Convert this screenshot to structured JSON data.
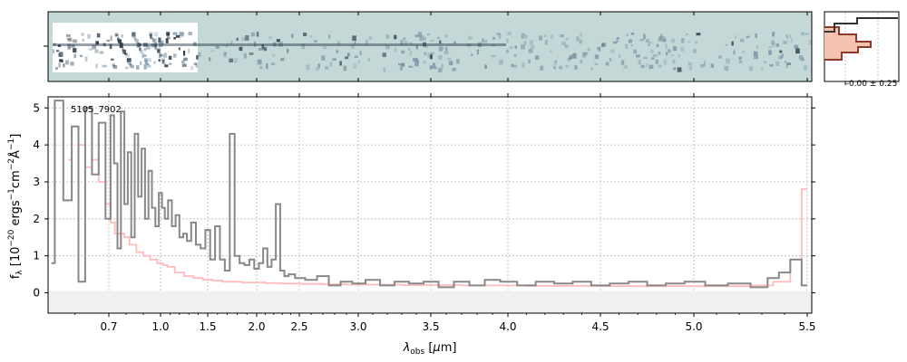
{
  "chart_data": {
    "type": "line",
    "object_id": "5105_7902",
    "xlabel": "λ_obs [μm]",
    "ylabel": "f_λ [10^-20 ergs^-1cm^-2Å^-1]",
    "x_scale": "nonlinear (approximately reciprocal)",
    "xlim": [
      0.52,
      5.52
    ],
    "ylim": [
      -0.55,
      5.3
    ],
    "x_ticks": [
      {
        "value": 0.7,
        "label": "0.7"
      },
      {
        "value": 1.0,
        "label": "1.0"
      },
      {
        "value": 1.5,
        "label": "1.5"
      },
      {
        "value": 2.0,
        "label": "2.0"
      },
      {
        "value": 2.5,
        "label": "2.5"
      },
      {
        "value": 3.0,
        "label": "3.0"
      },
      {
        "value": 3.5,
        "label": "3.5"
      },
      {
        "value": 4.0,
        "label": "4.0"
      },
      {
        "value": 4.5,
        "label": "4.5"
      },
      {
        "value": 5.0,
        "label": "5.0"
      },
      {
        "value": 5.5,
        "label": "5.5"
      }
    ],
    "y_ticks": [
      0,
      1,
      2,
      3,
      4,
      5
    ],
    "grid": true,
    "series": [
      {
        "role": "data",
        "color": "#888888",
        "x": [
          0.53,
          0.55,
          0.58,
          0.6,
          0.62,
          0.64,
          0.66,
          0.68,
          0.7,
          0.72,
          0.74,
          0.76,
          0.78,
          0.8,
          0.82,
          0.84,
          0.86,
          0.88,
          0.9,
          0.92,
          0.94,
          0.96,
          0.98,
          1.0,
          1.03,
          1.06,
          1.1,
          1.14,
          1.18,
          1.22,
          1.26,
          1.3,
          1.35,
          1.4,
          1.45,
          1.5,
          1.55,
          1.6,
          1.65,
          1.7,
          1.75,
          1.8,
          1.85,
          1.9,
          1.95,
          2.0,
          2.05,
          2.1,
          2.15,
          2.2,
          2.25,
          2.3,
          2.35,
          2.4,
          2.5,
          2.6,
          2.7,
          2.8,
          2.9,
          3.0,
          3.1,
          3.2,
          3.3,
          3.4,
          3.5,
          3.6,
          3.7,
          3.8,
          3.9,
          4.0,
          4.1,
          4.2,
          4.3,
          4.4,
          4.5,
          4.6,
          4.7,
          4.8,
          4.9,
          5.0,
          5.1,
          5.2,
          5.3,
          5.35,
          5.4,
          5.45,
          5.5
        ],
        "y": [
          0.8,
          5.2,
          2.5,
          4.5,
          0.3,
          5.0,
          3.2,
          4.6,
          2.0,
          4.8,
          3.5,
          1.2,
          4.9,
          2.4,
          3.8,
          1.5,
          4.3,
          2.6,
          3.9,
          2.0,
          3.3,
          2.3,
          1.8,
          2.7,
          2.3,
          2.0,
          2.5,
          1.8,
          2.1,
          1.5,
          1.6,
          1.4,
          1.9,
          1.3,
          1.2,
          1.7,
          0.9,
          1.8,
          0.9,
          0.6,
          4.3,
          1.0,
          0.8,
          0.75,
          0.9,
          0.65,
          0.8,
          1.2,
          0.7,
          0.9,
          2.4,
          0.6,
          0.45,
          0.5,
          0.4,
          0.35,
          0.45,
          0.2,
          0.3,
          0.25,
          0.35,
          0.2,
          0.3,
          0.25,
          0.3,
          0.15,
          0.3,
          0.2,
          0.35,
          0.3,
          0.2,
          0.3,
          0.25,
          0.3,
          0.2,
          0.25,
          0.3,
          0.2,
          0.25,
          0.3,
          0.2,
          0.25,
          0.15,
          0.4,
          0.55,
          0.9,
          0.2
        ]
      },
      {
        "role": "model",
        "color": "#ffbbbb",
        "x": [
          0.58,
          0.6,
          0.62,
          0.64,
          0.66,
          0.68,
          0.7,
          0.72,
          0.75,
          0.78,
          0.8,
          0.84,
          0.88,
          0.92,
          0.96,
          1.0,
          1.05,
          1.1,
          1.2,
          1.3,
          1.4,
          1.5,
          1.6,
          1.7,
          1.8,
          1.9,
          2.0,
          2.2,
          2.4,
          2.6,
          2.8,
          3.0,
          3.2,
          3.4,
          3.6,
          3.8,
          4.0,
          4.2,
          4.4,
          4.6,
          4.8,
          5.0,
          5.2,
          5.3,
          5.4,
          5.45,
          5.5
        ],
        "y": [
          3.6,
          4.5,
          4.0,
          3.4,
          3.6,
          3.0,
          2.4,
          1.9,
          1.6,
          1.6,
          1.5,
          1.3,
          1.1,
          1.0,
          0.9,
          0.8,
          0.75,
          0.7,
          0.55,
          0.45,
          0.4,
          0.35,
          0.33,
          0.3,
          0.3,
          0.28,
          0.28,
          0.26,
          0.25,
          0.24,
          0.23,
          0.22,
          0.22,
          0.21,
          0.21,
          0.2,
          0.2,
          0.19,
          0.19,
          0.18,
          0.18,
          0.18,
          0.18,
          0.2,
          0.3,
          0.9,
          2.8
        ]
      }
    ],
    "panels": {
      "spectrum_2d": {
        "description_label": "2D spectrum"
      },
      "profile": {
        "tick_label": "-0.00 ± 0.25"
      }
    }
  },
  "colors": {
    "axes": "#000000",
    "grid": "#b8b8b8",
    "spec2d_bg": "#c4d9d7",
    "data": "#888888",
    "model": "#ffbbbb",
    "profile_line": "#333333",
    "profile_fill": "#f5c2b0",
    "profile_model": "#8b3a2a"
  }
}
